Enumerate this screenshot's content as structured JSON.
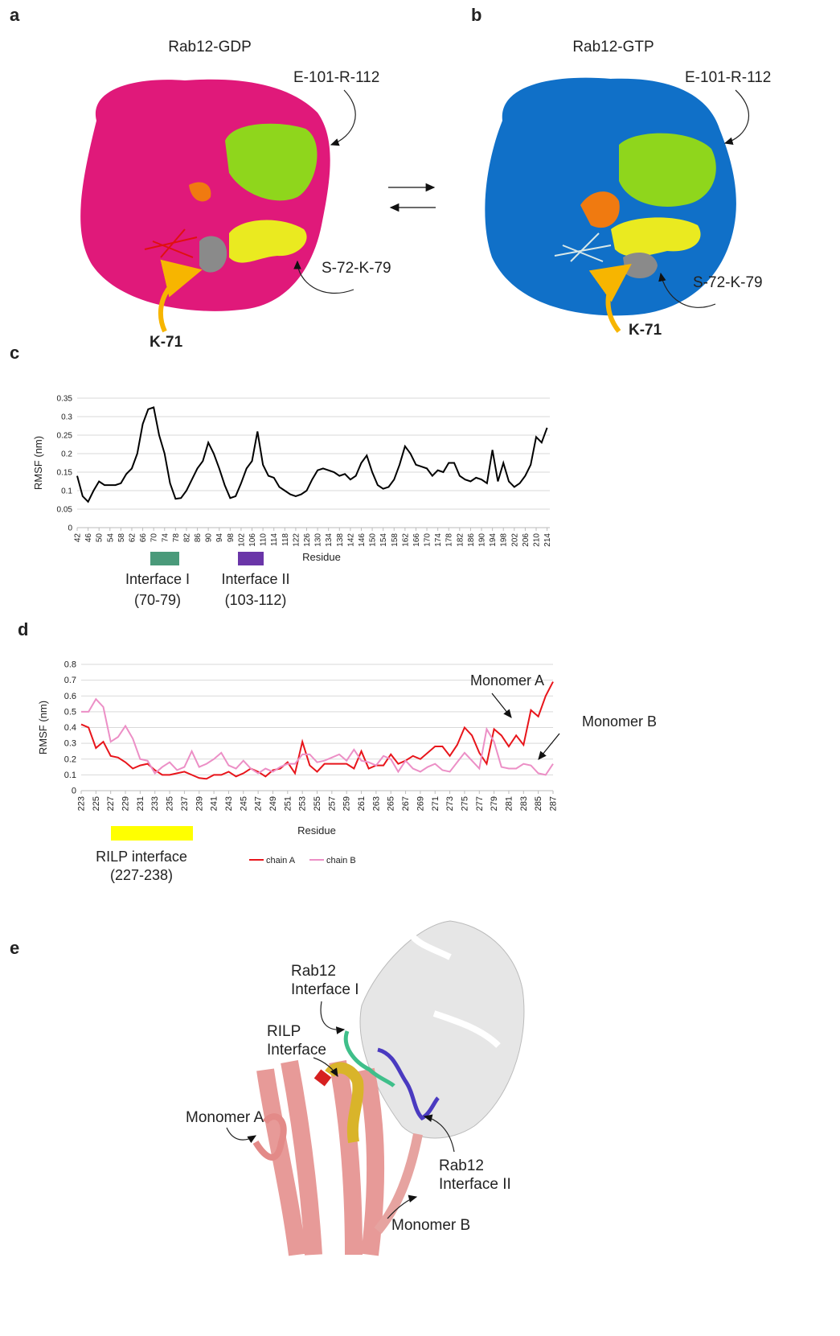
{
  "panel_labels": [
    "a",
    "b",
    "c",
    "d",
    "e"
  ],
  "panel_a": {
    "title": "Rab12-GDP",
    "labels": [
      "E-101-R-112",
      "S-72-K-79",
      "K-71"
    ]
  },
  "panel_b": {
    "title": "Rab12-GTP",
    "labels": [
      "E-101-R-112",
      "S-72-K-79",
      "K-71"
    ]
  },
  "chart_data": [
    {
      "type": "line",
      "x_label": "Residue",
      "y_label": "RMSF (nm)",
      "color": "#000000",
      "grid": true,
      "x": [
        42,
        44,
        46,
        48,
        50,
        52,
        54,
        56,
        58,
        60,
        62,
        64,
        66,
        68,
        70,
        72,
        74,
        76,
        78,
        80,
        82,
        84,
        86,
        88,
        90,
        92,
        94,
        96,
        98,
        100,
        102,
        104,
        106,
        108,
        110,
        112,
        114,
        116,
        118,
        120,
        122,
        124,
        126,
        128,
        130,
        132,
        134,
        136,
        138,
        140,
        142,
        144,
        146,
        148,
        150,
        152,
        154,
        156,
        158,
        160,
        162,
        164,
        166,
        168,
        170,
        172,
        174,
        176,
        178,
        180,
        182,
        184,
        186,
        188,
        190,
        192,
        194,
        196,
        198,
        200,
        202,
        204,
        206,
        208,
        210,
        212,
        214
      ],
      "values": [
        0.14,
        0.085,
        0.07,
        0.1,
        0.125,
        0.115,
        0.115,
        0.115,
        0.12,
        0.145,
        0.16,
        0.2,
        0.28,
        0.32,
        0.325,
        0.25,
        0.2,
        0.12,
        0.078,
        0.08,
        0.1,
        0.13,
        0.16,
        0.18,
        0.23,
        0.2,
        0.16,
        0.115,
        0.08,
        0.085,
        0.12,
        0.16,
        0.18,
        0.26,
        0.17,
        0.14,
        0.135,
        0.11,
        0.1,
        0.09,
        0.085,
        0.09,
        0.1,
        0.13,
        0.155,
        0.16,
        0.155,
        0.15,
        0.14,
        0.145,
        0.13,
        0.14,
        0.175,
        0.195,
        0.15,
        0.115,
        0.105,
        0.11,
        0.13,
        0.17,
        0.22,
        0.2,
        0.17,
        0.165,
        0.16,
        0.14,
        0.155,
        0.15,
        0.175,
        0.175,
        0.14,
        0.13,
        0.125,
        0.135,
        0.13,
        0.12,
        0.21,
        0.125,
        0.175,
        0.125,
        0.11,
        0.12,
        0.14,
        0.17,
        0.245,
        0.23,
        0.27
      ],
      "xlim": [
        42,
        215
      ],
      "xticks": [
        42,
        46,
        50,
        54,
        58,
        62,
        66,
        70,
        74,
        78,
        82,
        86,
        90,
        94,
        98,
        102,
        106,
        110,
        114,
        118,
        122,
        126,
        130,
        134,
        138,
        142,
        146,
        150,
        154,
        158,
        162,
        166,
        170,
        174,
        178,
        182,
        186,
        190,
        194,
        198,
        202,
        206,
        210,
        214
      ],
      "ylim": [
        0,
        0.35
      ],
      "yticks": [
        0,
        0.05,
        0.1,
        0.15,
        0.2,
        0.25,
        0.3,
        0.35
      ],
      "annotations": [
        {
          "text": "Interface I",
          "subtext": "(70-79)",
          "color": "#4a9a7a"
        },
        {
          "text": "Interface II",
          "subtext": "(103-112)",
          "color": "#6a35a8"
        }
      ]
    },
    {
      "type": "line",
      "x_label": "Residue",
      "y_label": "RMSF (nm)",
      "grid": true,
      "legend": "bottom",
      "x": [
        223,
        224,
        225,
        226,
        227,
        228,
        229,
        230,
        231,
        232,
        233,
        234,
        235,
        236,
        237,
        238,
        239,
        240,
        241,
        242,
        243,
        244,
        245,
        246,
        247,
        248,
        249,
        250,
        251,
        252,
        253,
        254,
        255,
        256,
        257,
        258,
        259,
        260,
        261,
        262,
        263,
        264,
        265,
        266,
        267,
        268,
        269,
        270,
        271,
        272,
        273,
        274,
        275,
        276,
        277,
        278,
        279,
        280,
        281,
        282,
        283,
        284,
        285,
        286,
        287
      ],
      "series": [
        {
          "name": "chain A",
          "color": "#e8151b",
          "values": [
            0.42,
            0.4,
            0.27,
            0.31,
            0.22,
            0.21,
            0.18,
            0.14,
            0.16,
            0.17,
            0.13,
            0.1,
            0.1,
            0.11,
            0.12,
            0.1,
            0.08,
            0.075,
            0.1,
            0.1,
            0.12,
            0.09,
            0.11,
            0.14,
            0.12,
            0.09,
            0.13,
            0.14,
            0.18,
            0.11,
            0.31,
            0.16,
            0.12,
            0.17,
            0.17,
            0.17,
            0.17,
            0.14,
            0.25,
            0.14,
            0.16,
            0.16,
            0.23,
            0.17,
            0.19,
            0.22,
            0.2,
            0.24,
            0.28,
            0.28,
            0.22,
            0.29,
            0.4,
            0.35,
            0.24,
            0.17,
            0.39,
            0.35,
            0.28,
            0.35,
            0.29,
            0.51,
            0.47,
            0.6,
            0.69
          ]
        },
        {
          "name": "chain B",
          "color": "#ec8fc6",
          "values": [
            0.5,
            0.5,
            0.58,
            0.53,
            0.31,
            0.34,
            0.41,
            0.33,
            0.2,
            0.19,
            0.11,
            0.15,
            0.18,
            0.13,
            0.15,
            0.25,
            0.15,
            0.17,
            0.2,
            0.24,
            0.16,
            0.14,
            0.19,
            0.14,
            0.11,
            0.14,
            0.12,
            0.15,
            0.17,
            0.17,
            0.23,
            0.23,
            0.18,
            0.19,
            0.21,
            0.23,
            0.19,
            0.26,
            0.19,
            0.18,
            0.16,
            0.22,
            0.2,
            0.12,
            0.19,
            0.14,
            0.12,
            0.15,
            0.17,
            0.13,
            0.12,
            0.18,
            0.24,
            0.19,
            0.14,
            0.39,
            0.31,
            0.15,
            0.14,
            0.14,
            0.17,
            0.16,
            0.11,
            0.1,
            0.17
          ]
        }
      ],
      "xlim": [
        223,
        287
      ],
      "xticks": [
        223,
        225,
        227,
        229,
        231,
        233,
        235,
        237,
        239,
        241,
        243,
        245,
        247,
        249,
        251,
        253,
        255,
        257,
        259,
        261,
        263,
        265,
        267,
        269,
        271,
        273,
        275,
        277,
        279,
        281,
        283,
        285,
        287
      ],
      "ylim": [
        0,
        0.8
      ],
      "yticks": [
        0,
        0.1,
        0.2,
        0.3,
        0.4,
        0.5,
        0.6,
        0.7,
        0.8
      ],
      "annotations": [
        {
          "text": "Monomer A"
        },
        {
          "text": "Monomer B"
        },
        {
          "text": "RILP interface",
          "subtext": "(227-238)",
          "color": "#ffff00"
        }
      ]
    }
  ],
  "panel_e": {
    "labels": [
      [
        "Rab12",
        "Interface I"
      ],
      [
        "RILP",
        "Interface"
      ],
      [
        "Monomer A"
      ],
      [
        "Rab12",
        "Interface II"
      ],
      [
        "Monomer B"
      ]
    ]
  }
}
